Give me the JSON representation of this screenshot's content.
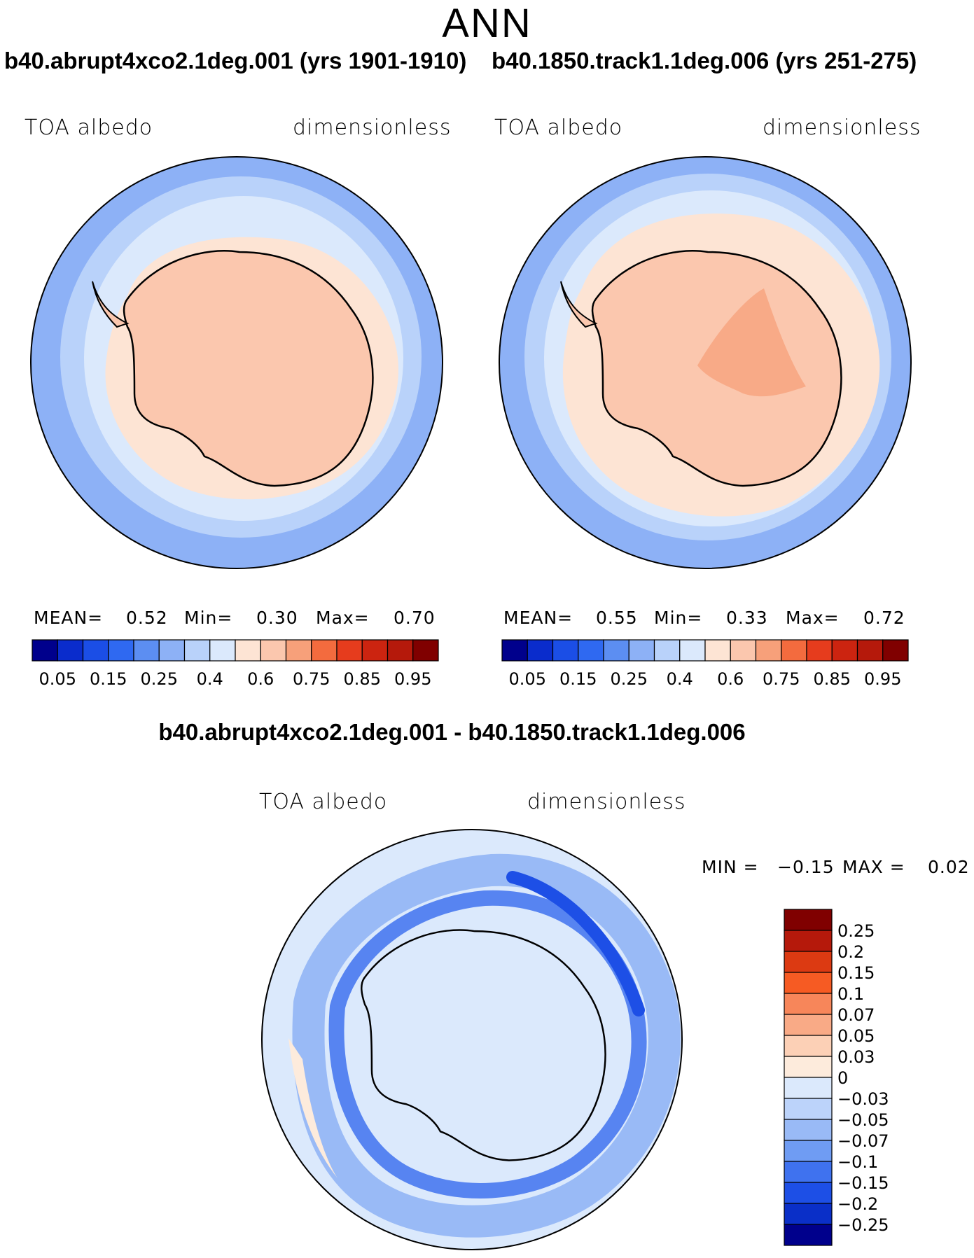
{
  "figure": {
    "season": "ANN",
    "case_a_title": "b40.abrupt4xco2.1deg.001 (yrs 1901-1910)",
    "case_b_title": "b40.1850.track1.1deg.006 (yrs 251-275)",
    "diff_title": "b40.abrupt4xco2.1deg.001 - b40.1850.track1.1deg.006"
  },
  "panels": {
    "a": {
      "variable": "TOA albedo",
      "units": "dimensionless",
      "mean_label": "MEAN=",
      "mean_value": "0.52",
      "min_label": "Min=",
      "min_value": "0.30",
      "max_label": "Max=",
      "max_value": "0.70"
    },
    "b": {
      "variable": "TOA albedo",
      "units": "dimensionless",
      "mean_label": "MEAN=",
      "mean_value": "0.55",
      "min_label": "Min=",
      "min_value": "0.33",
      "max_label": "Max=",
      "max_value": "0.72"
    },
    "diff": {
      "variable": "TOA albedo",
      "units": "dimensionless",
      "min_label": "MIN =",
      "min_value": "−0.15",
      "max_label": "MAX =",
      "max_value": "0.02"
    }
  },
  "chart_data": [
    {
      "type": "heatmap",
      "projection": "south-polar stereographic",
      "title": "b40.abrupt4xco2.1deg.001 (yrs 1901-1910)",
      "variable": "TOA albedo",
      "units": "dimensionless",
      "stats": {
        "mean": 0.52,
        "min": 0.3,
        "max": 0.7
      },
      "colorbar_ticks": [
        "0.05",
        "0.15",
        "0.25",
        "0.4",
        "0.6",
        "0.75",
        "0.85",
        "0.95"
      ],
      "colorbar_colors": [
        "#00008c",
        "#0a2ccc",
        "#1b4ee6",
        "#2f69f1",
        "#5c8ef2",
        "#8db1f6",
        "#b9d2fa",
        "#dbe9fc",
        "#fde4d4",
        "#fbc7ae",
        "#f7a07a",
        "#f36b3e",
        "#e63c1d",
        "#cc2410",
        "#b5190b",
        "#800000"
      ]
    },
    {
      "type": "heatmap",
      "projection": "south-polar stereographic",
      "title": "b40.1850.track1.1deg.006 (yrs 251-275)",
      "variable": "TOA albedo",
      "units": "dimensionless",
      "stats": {
        "mean": 0.55,
        "min": 0.33,
        "max": 0.72
      },
      "colorbar_ticks": [
        "0.05",
        "0.15",
        "0.25",
        "0.4",
        "0.6",
        "0.75",
        "0.85",
        "0.95"
      ],
      "colorbar_colors": [
        "#00008c",
        "#0a2ccc",
        "#1b4ee6",
        "#2f69f1",
        "#5c8ef2",
        "#8db1f6",
        "#b9d2fa",
        "#dbe9fc",
        "#fde4d4",
        "#fbc7ae",
        "#f7a07a",
        "#f36b3e",
        "#e63c1d",
        "#cc2410",
        "#b5190b",
        "#800000"
      ]
    },
    {
      "type": "heatmap",
      "projection": "south-polar stereographic",
      "title": "b40.abrupt4xco2.1deg.001 - b40.1850.track1.1deg.006",
      "variable": "TOA albedo",
      "units": "dimensionless",
      "stats": {
        "min": -0.15,
        "max": 0.02
      },
      "colorbar_ticks": [
        "0.25",
        "0.2",
        "0.15",
        "0.1",
        "0.07",
        "0.05",
        "0.03",
        "0",
        "−0.03",
        "−0.05",
        "−0.07",
        "−0.1",
        "−0.15",
        "−0.2",
        "−0.25"
      ],
      "colorbar_colors": [
        "#800000",
        "#b5190b",
        "#dc3a12",
        "#f65b23",
        "#f7865a",
        "#f9aa86",
        "#fcd0b6",
        "#fdebdc",
        "#dbe9fc",
        "#bcd3fa",
        "#99baf6",
        "#6f9cf3",
        "#3f72ef",
        "#1d4fe6",
        "#0a2fc8",
        "#00008c"
      ]
    }
  ]
}
